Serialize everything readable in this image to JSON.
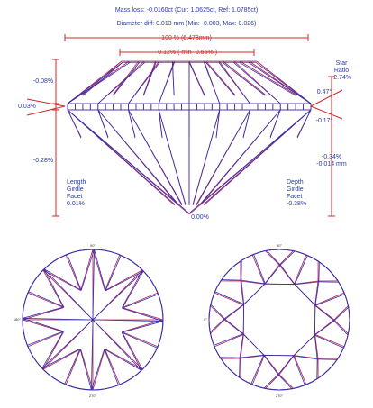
{
  "header": {
    "mass_loss": "Mass loss: -0.0160ct (Cur: 1.0625ct, Ref: 1.0785ct)",
    "diameter_diff": "Diameter diff: 0.013 mm (Min: -0.003, Max: 0.026)"
  },
  "profile": {
    "diameter": "100 % (6.473mm)",
    "table": "-0.12% ( min -0.56% )",
    "crown_height": "-0.08%",
    "girdle": "0.03%",
    "pavilion_depth": "-0.28%",
    "length_girdle_facet": [
      "Length",
      "Girdle",
      "Facet",
      "0.01%"
    ],
    "culet": "0.00%",
    "star_ratio": [
      "Star",
      "Ratio",
      "-2.74%"
    ],
    "crown_angle": "0.47°",
    "pavilion_angle": "-0.17°",
    "total_depth": [
      "-0.34%",
      "-0.014 mm"
    ],
    "depth_girdle_facet": [
      "Depth",
      "Girdle",
      "Facet",
      "-0.38%"
    ]
  },
  "bottom_view": {
    "top": "90°",
    "left": "180°",
    "bottom": "270°"
  },
  "top_view": {
    "top": "90°",
    "left": "0°",
    "bottom": "270°"
  }
}
